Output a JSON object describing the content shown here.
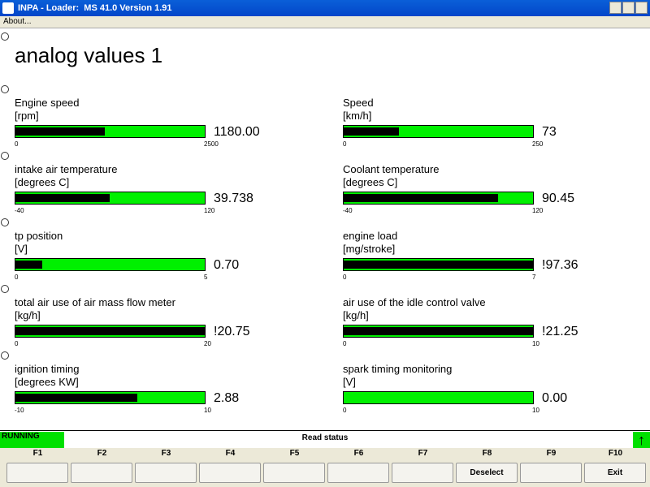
{
  "window": {
    "title": "INPA - Loader:  MS 41.0 Version 1.91",
    "menu": [
      "About..."
    ]
  },
  "heading": "analog values 1",
  "gauges": [
    {
      "label": "Engine speed",
      "unit": "[rpm]",
      "value": 1180,
      "value_label": "1180.00",
      "min": 0,
      "max": 2500
    },
    {
      "label": "Speed",
      "unit": "[km/h]",
      "value": 73,
      "min": 0,
      "max": 250
    },
    {
      "label": "intake air temperature",
      "unit": "[degrees C]",
      "value": 39.738,
      "min": -40,
      "max": 120
    },
    {
      "label": "Coolant temperature",
      "unit": "[degrees C]",
      "value": 90.45,
      "min": -40,
      "max": 120
    },
    {
      "label": "tp position",
      "unit": "[V]",
      "value": 0.7,
      "value_label": "0.70",
      "min": 0,
      "max": 5
    },
    {
      "label": "engine load",
      "unit": "[mg/stroke]",
      "value": 97.36,
      "value_label": "!97.36",
      "min": 0,
      "max": 7
    },
    {
      "label": "total air use of air mass flow meter",
      "unit": "[kg/h]",
      "value": 20.75,
      "value_label": "!20.75",
      "min": 0,
      "max": 20
    },
    {
      "label": "air use of the idle control valve",
      "unit": "[kg/h]",
      "value": 21.25,
      "value_label": "!21.25",
      "min": 0,
      "max": 10
    },
    {
      "label": "ignition timing",
      "unit": "[degrees KW]",
      "value": 2.88,
      "min": -10,
      "max": 10
    },
    {
      "label": "spark timing monitoring",
      "unit": "[V]",
      "value": 0,
      "value_label": "0.00",
      "min": 0,
      "max": 10
    }
  ],
  "status": {
    "state": "RUNNING",
    "message": "Read status"
  },
  "function_keys": [
    {
      "key": "F1"
    },
    {
      "key": "F2"
    },
    {
      "key": "F3"
    },
    {
      "key": "F4"
    },
    {
      "key": "F5"
    },
    {
      "key": "F6"
    },
    {
      "key": "F7"
    },
    {
      "key": "F8",
      "label": "Deselect"
    },
    {
      "key": "F9"
    },
    {
      "key": "F10",
      "label": "Exit"
    }
  ]
}
